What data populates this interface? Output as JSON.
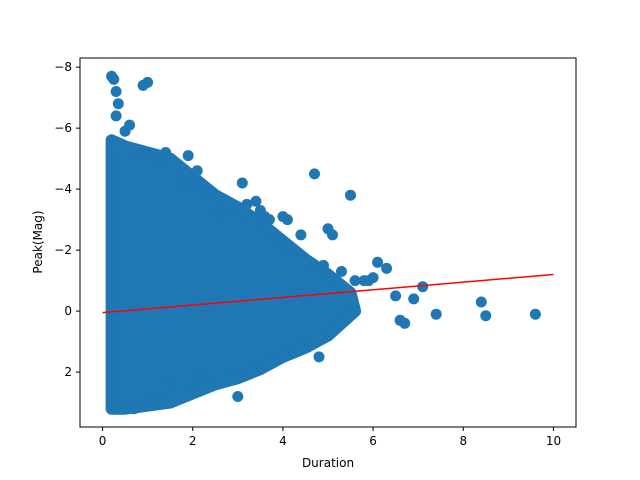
{
  "chart_data": {
    "type": "scatter",
    "title": "",
    "xlabel": "Duration",
    "ylabel": "Peak(Mag)",
    "xlim": [
      -0.5,
      10.5
    ],
    "ylim": [
      3.8,
      -8.3
    ],
    "y_axis_inverted": true,
    "x_ticks": [
      0,
      2,
      4,
      6,
      8,
      10
    ],
    "x_tick_labels": [
      "0",
      "2",
      "4",
      "6",
      "8",
      "10"
    ],
    "y_ticks": [
      -8,
      -6,
      -4,
      -2,
      0,
      2
    ],
    "y_tick_labels": [
      "−8",
      "−6",
      "−4",
      "−2",
      "0",
      "2"
    ],
    "grid": false,
    "legend": "none",
    "colors": {
      "points": "#1f77b4",
      "fit_line": "#ff0000"
    },
    "series": [
      {
        "kind": "points",
        "x": [
          0.2,
          0.25,
          0.3,
          0.35,
          0.3,
          0.9,
          1.0,
          0.6,
          0.5,
          1.2,
          1.4,
          1.8,
          1.9,
          2.0,
          2.1,
          2.4,
          2.6,
          3.1,
          3.2,
          3.4,
          3.7,
          3.5,
          3.6,
          3.9,
          4.0,
          4.1,
          4.2,
          4.4,
          4.7,
          4.9,
          5.0,
          5.1,
          5.3,
          5.5,
          5.6,
          5.8,
          5.9,
          6.0,
          6.1,
          6.3,
          6.5,
          6.6,
          6.7,
          6.9,
          7.1,
          7.4,
          8.4,
          8.5,
          9.6,
          4.8,
          3.0,
          2.2,
          1.0,
          0.7,
          1.5
        ],
        "y": [
          -7.7,
          -7.6,
          -7.2,
          -6.8,
          -6.4,
          -7.4,
          -7.5,
          -6.1,
          -5.9,
          -5.0,
          -5.2,
          -4.2,
          -5.1,
          -4.3,
          -4.6,
          -3.9,
          -3.2,
          -4.2,
          -3.5,
          -3.6,
          -3.0,
          -3.3,
          -3.1,
          -2.3,
          -3.1,
          -3.0,
          -2.0,
          -2.5,
          -4.5,
          -1.5,
          -2.7,
          -2.5,
          -1.3,
          -3.8,
          -1.0,
          -1.0,
          -1.0,
          -1.1,
          -1.6,
          -1.4,
          -0.5,
          0.3,
          0.4,
          -0.4,
          -0.8,
          0.1,
          -0.3,
          0.15,
          0.1,
          1.5,
          2.8,
          2.1,
          3.1,
          3.2,
          2.3
        ]
      },
      {
        "kind": "fit_line",
        "x": [
          0,
          10
        ],
        "y": [
          0.05,
          -1.2
        ]
      }
    ]
  }
}
